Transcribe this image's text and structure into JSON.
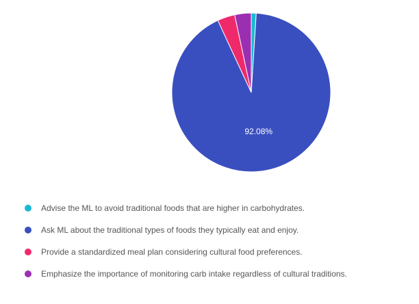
{
  "chart_data": {
    "type": "pie",
    "title": "",
    "categories": [
      "Advise the ML to avoid traditional foods that are higher in carbohydrates.",
      "Ask ML about the traditional types of foods they typically eat and enjoy.",
      "Provide a standardized meal plan considering cultural food preferences.",
      "Emphasize the importance of monitoring carb intake regardless of cultural traditions."
    ],
    "values": [
      1.0,
      92.08,
      3.56,
      3.36
    ],
    "colors": [
      "#1ab8d4",
      "#3a4fbf",
      "#ef2a6b",
      "#9b2fb2"
    ],
    "data_labels": [
      "",
      "92.08%",
      "",
      ""
    ],
    "legend_position": "bottom-left"
  }
}
